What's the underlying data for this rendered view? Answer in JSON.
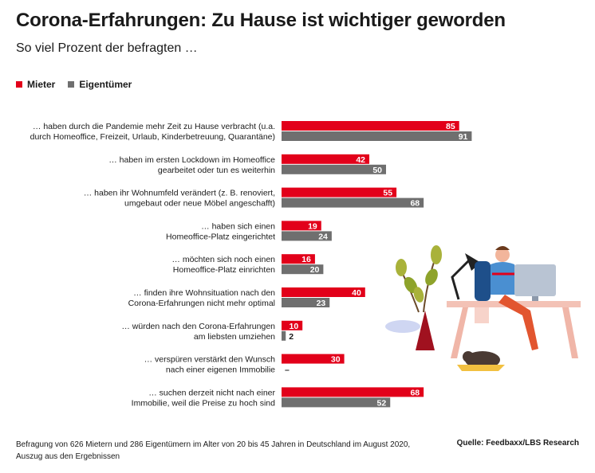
{
  "title": "Corona-Erfahrungen: Zu Hause ist wichtiger geworden",
  "subtitle": "So viel Prozent der befragten …",
  "colors": {
    "mieter": "#e2001a",
    "eigentuemer": "#6f6f6f"
  },
  "legend": [
    {
      "label": "Mieter",
      "color": "#e2001a"
    },
    {
      "label": "Eigentümer",
      "color": "#6f6f6f"
    }
  ],
  "chart_data": {
    "type": "bar",
    "orientation": "horizontal",
    "categories": [
      [
        "… haben durch die Pandemie mehr Zeit zu Hause verbracht (u.a.",
        "durch Homeoffice, Freizeit, Urlaub, Kinderbetreuung, Quarantäne)"
      ],
      [
        "… haben im ersten Lockdown im Homeoffice",
        "gearbeitet oder tun es weiterhin"
      ],
      [
        "… haben ihr Wohnumfeld verändert (z. B. renoviert,",
        "umgebaut oder neue Möbel angeschafft)"
      ],
      [
        "… haben sich einen",
        "Homeoffice-Platz eingerichtet"
      ],
      [
        "… möchten sich noch einen",
        "Homeoffice-Platz einrichten"
      ],
      [
        "… finden ihre Wohnsituation nach den",
        "Corona-Erfahrungen nicht mehr optimal"
      ],
      [
        "… würden nach den Corona-Erfahrungen",
        "am liebsten umziehen"
      ],
      [
        "… verspüren verstärkt den Wunsch",
        "nach einer eigenen Immobilie"
      ],
      [
        "… suchen derzeit nicht nach einer",
        "Immobilie, weil die Preise zu hoch sind"
      ]
    ],
    "series": [
      {
        "name": "Mieter",
        "values": [
          85,
          42,
          55,
          19,
          16,
          40,
          10,
          30,
          68
        ],
        "labels": [
          "85",
          "42",
          "55",
          "19",
          "16",
          "40",
          "10",
          "30",
          "68"
        ]
      },
      {
        "name": "Eigentümer",
        "values": [
          91,
          50,
          68,
          24,
          20,
          23,
          2,
          0,
          52
        ],
        "labels": [
          "91",
          "50",
          "68",
          "24",
          "20",
          "23",
          "2",
          "–",
          "52"
        ]
      }
    ],
    "xlim": [
      0,
      100
    ],
    "grid": false
  },
  "footnote": [
    "Befragung von 626 Mietern und 286 Eigentümern im Alter von 20 bis 45 Jahren in Deutschland im August 2020,",
    "Auszug aus den Ergebnissen"
  ],
  "source": "Quelle: Feedbaxx/LBS Research"
}
